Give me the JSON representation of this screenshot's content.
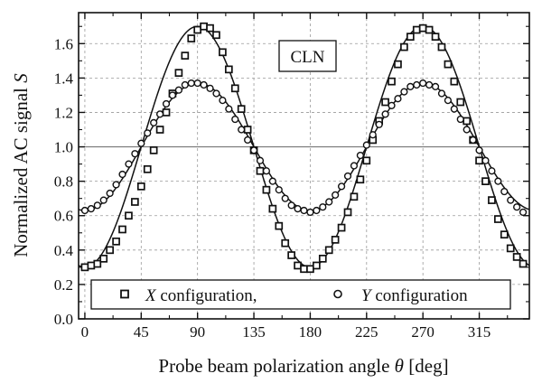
{
  "chart_data": {
    "type": "scatter",
    "xlabel": "Probe beam polarization angle",
    "xlabel_symbol": "θ",
    "xlabel_unit": "[deg]",
    "ylabel": "Normalized AC signal",
    "ylabel_symbol": "S",
    "xlim": [
      -5,
      355
    ],
    "ylim": [
      0.0,
      1.78
    ],
    "x_ticks": [
      0,
      45,
      90,
      135,
      180,
      225,
      270,
      315
    ],
    "y_ticks": [
      0.0,
      0.2,
      0.4,
      0.6,
      0.8,
      1.0,
      1.2,
      1.4,
      1.6
    ],
    "x_tick_labels": [
      "0",
      "45",
      "90",
      "135",
      "180",
      "225",
      "270",
      "315"
    ],
    "y_tick_labels": [
      "0.0",
      "0.2",
      "0.4",
      "0.6",
      "0.8",
      "1.0",
      "1.2",
      "1.4",
      "1.6"
    ],
    "grid": true,
    "reference_line_y": 1.0,
    "annotation": "CLN",
    "legend": {
      "placement": "bottom",
      "entries": [
        {
          "symbol": "X",
          "text": " configuration,",
          "marker": "square"
        },
        {
          "symbol": "Y",
          "text": " configuration",
          "marker": "circle"
        }
      ]
    },
    "series": [
      {
        "marker": "square",
        "model": {
          "mean": 1.0,
          "amplitude": 0.7
        },
        "x": [
          0,
          5,
          10,
          15,
          20,
          25,
          30,
          35,
          40,
          45,
          50,
          55,
          60,
          65,
          70,
          75,
          80,
          85,
          90,
          95,
          100,
          105,
          110,
          115,
          120,
          125,
          130,
          135,
          140,
          145,
          150,
          155,
          160,
          165,
          170,
          175,
          180,
          185,
          190,
          195,
          200,
          205,
          210,
          215,
          220,
          225,
          230,
          235,
          240,
          245,
          250,
          255,
          260,
          265,
          270,
          275,
          280,
          285,
          290,
          295,
          300,
          305,
          310,
          315,
          320,
          325,
          330,
          335,
          340,
          345,
          350
        ],
        "y": [
          0.3,
          0.31,
          0.32,
          0.35,
          0.4,
          0.45,
          0.52,
          0.6,
          0.68,
          0.77,
          0.87,
          0.98,
          1.1,
          1.2,
          1.31,
          1.43,
          1.53,
          1.63,
          1.68,
          1.7,
          1.69,
          1.65,
          1.55,
          1.45,
          1.34,
          1.22,
          1.1,
          0.98,
          0.86,
          0.75,
          0.64,
          0.54,
          0.44,
          0.37,
          0.31,
          0.29,
          0.29,
          0.31,
          0.35,
          0.4,
          0.46,
          0.53,
          0.62,
          0.71,
          0.81,
          0.92,
          1.04,
          1.15,
          1.26,
          1.38,
          1.48,
          1.58,
          1.64,
          1.68,
          1.69,
          1.68,
          1.64,
          1.58,
          1.48,
          1.38,
          1.26,
          1.15,
          1.04,
          0.92,
          0.8,
          0.69,
          0.58,
          0.49,
          0.41,
          0.36,
          0.32
        ]
      },
      {
        "marker": "circle",
        "model": {
          "mean": 1.0,
          "amplitude": 0.37
        },
        "x": [
          0,
          5,
          10,
          15,
          20,
          25,
          30,
          35,
          40,
          45,
          50,
          55,
          60,
          65,
          70,
          75,
          80,
          85,
          90,
          95,
          100,
          105,
          110,
          115,
          120,
          125,
          130,
          135,
          140,
          145,
          150,
          155,
          160,
          165,
          170,
          175,
          180,
          185,
          190,
          195,
          200,
          205,
          210,
          215,
          220,
          225,
          230,
          235,
          240,
          245,
          250,
          255,
          260,
          265,
          270,
          275,
          280,
          285,
          290,
          295,
          300,
          305,
          310,
          315,
          320,
          325,
          330,
          335,
          340,
          345,
          350
        ],
        "y": [
          0.63,
          0.64,
          0.66,
          0.69,
          0.73,
          0.78,
          0.84,
          0.9,
          0.96,
          1.02,
          1.08,
          1.14,
          1.19,
          1.25,
          1.3,
          1.33,
          1.36,
          1.37,
          1.37,
          1.36,
          1.34,
          1.31,
          1.27,
          1.22,
          1.16,
          1.1,
          1.04,
          0.98,
          0.92,
          0.86,
          0.8,
          0.75,
          0.7,
          0.66,
          0.64,
          0.63,
          0.62,
          0.63,
          0.65,
          0.68,
          0.72,
          0.77,
          0.83,
          0.89,
          0.95,
          1.01,
          1.07,
          1.13,
          1.19,
          1.24,
          1.28,
          1.32,
          1.35,
          1.36,
          1.37,
          1.36,
          1.35,
          1.31,
          1.27,
          1.22,
          1.16,
          1.1,
          1.04,
          0.98,
          0.92,
          0.86,
          0.8,
          0.74,
          0.69,
          0.65,
          0.62
        ]
      }
    ]
  }
}
